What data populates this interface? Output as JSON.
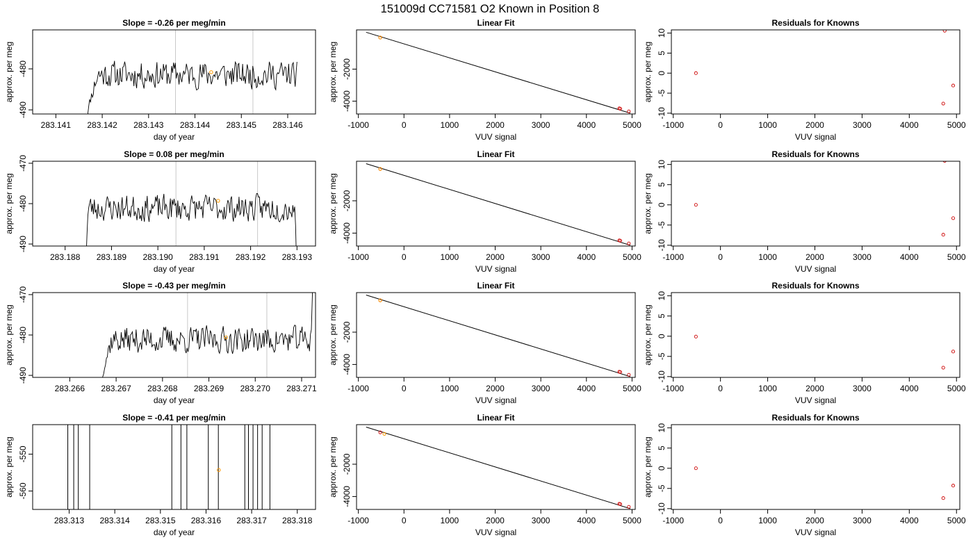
{
  "figure_title": "151009d     CC71581   O2 Known in Position  8",
  "chart_data": [
    {
      "type": "line",
      "title": "Slope =  -0.26  per meg/min",
      "xlabel": "day of year",
      "ylabel": "approx. per meg",
      "x_ticks": [
        "283.141",
        "283.142",
        "283.143",
        "283.144",
        "283.145",
        "283.146"
      ],
      "y_ticks": [
        "-490",
        "-480"
      ],
      "xlim": [
        283.1405,
        283.1466
      ],
      "ylim": [
        -491,
        -470.5
      ],
      "vlines": [
        283.14358,
        283.14525
      ],
      "trace_start": 283.14163,
      "trace_end": 283.1462,
      "plateau_start": 283.1419,
      "plateau_end": 283.14625,
      "level": -481.4,
      "noise": 1.9,
      "seed": 11,
      "point": {
        "x": 283.14435,
        "y": -480.8
      }
    },
    {
      "type": "scatter",
      "title": "Linear Fit",
      "xlabel": "VUV signal",
      "ylabel": "approx. per meg",
      "x_ticks": [
        "-1000",
        "0",
        "1000",
        "2000",
        "3000",
        "4000",
        "5000"
      ],
      "y_ticks": [
        "-2000",
        "-4000"
      ],
      "xlim": [
        -1040,
        5070
      ],
      "ylim": [
        -4800,
        450
      ],
      "line": [
        [
          -830,
          300
        ],
        [
          4960,
          -4750
        ]
      ],
      "points": [
        [
          -520,
          -30
        ],
        [
          4720,
          -4450
        ],
        [
          4740,
          -4470
        ],
        [
          4930,
          -4640
        ]
      ],
      "highlight": [
        [
          -520,
          -30
        ]
      ]
    },
    {
      "type": "scatter",
      "title": "Residuals for Knowns",
      "xlabel": "VUV signal",
      "ylabel": "approx. per meg",
      "x_ticks": [
        "-1000",
        "0",
        "1000",
        "2000",
        "3000",
        "4000",
        "5000"
      ],
      "y_ticks": [
        "-10",
        "-5",
        "0",
        "5",
        "10"
      ],
      "xlim": [
        -1040,
        5070
      ],
      "ylim": [
        -10.2,
        10.8
      ],
      "points": [
        [
          -520,
          0
        ],
        [
          4720,
          -7.6
        ],
        [
          4750,
          10.6
        ],
        [
          4930,
          -3.1
        ]
      ]
    },
    {
      "type": "line",
      "title": "Slope =  0.08  per meg/min",
      "xlabel": "day of year",
      "ylabel": "approx. per meg",
      "x_ticks": [
        "283.188",
        "283.189",
        "283.190",
        "283.191",
        "283.192",
        "283.193"
      ],
      "y_ticks": [
        "-490",
        "-480",
        "-470"
      ],
      "xlim": [
        283.1873,
        283.1934
      ],
      "ylim": [
        -490.5,
        -469.5
      ],
      "vlines": [
        283.19039,
        283.19215
      ],
      "trace_start": 283.18845,
      "trace_end": 283.19305,
      "plateau_start": 283.1885,
      "plateau_end": 283.19295,
      "level": -481.1,
      "noise": 1.9,
      "seed": 23,
      "point": {
        "x": 283.1913,
        "y": -479.3
      }
    },
    {
      "type": "scatter",
      "title": "Linear Fit",
      "xlabel": "VUV signal",
      "ylabel": "approx. per meg",
      "x_ticks": [
        "-1000",
        "0",
        "1000",
        "2000",
        "3000",
        "4000",
        "5000"
      ],
      "y_ticks": [
        "-2000",
        "-4000"
      ],
      "xlim": [
        -1040,
        5070
      ],
      "ylim": [
        -4800,
        450
      ],
      "line": [
        [
          -830,
          300
        ],
        [
          4960,
          -4750
        ]
      ],
      "points": [
        [
          -520,
          -30
        ],
        [
          4720,
          -4450
        ],
        [
          4740,
          -4470
        ],
        [
          4930,
          -4640
        ]
      ],
      "highlight": [
        [
          -520,
          -30
        ]
      ]
    },
    {
      "type": "scatter",
      "title": "Residuals for Knowns",
      "xlabel": "VUV signal",
      "ylabel": "approx. per meg",
      "x_ticks": [
        "-1000",
        "0",
        "1000",
        "2000",
        "3000",
        "4000",
        "5000"
      ],
      "y_ticks": [
        "-10",
        "-5",
        "0",
        "5",
        "10"
      ],
      "xlim": [
        -1040,
        5070
      ],
      "ylim": [
        -10.2,
        10.8
      ],
      "points": [
        [
          -520,
          0
        ],
        [
          4720,
          -7.4
        ],
        [
          4750,
          10.9
        ],
        [
          4930,
          -3.3
        ]
      ]
    },
    {
      "type": "line",
      "title": "Slope =  -0.43  per meg/min",
      "xlabel": "day of year",
      "ylabel": "approx. per meg",
      "x_ticks": [
        "283.266",
        "283.267",
        "283.268",
        "283.269",
        "283.270",
        "283.271"
      ],
      "y_ticks": [
        "-490",
        "-480",
        "-470"
      ],
      "xlim": [
        283.2652,
        283.2713
      ],
      "ylim": [
        -490.5,
        -469.5
      ],
      "vlines": [
        283.26854,
        283.27025
      ],
      "trace_start": 283.26665,
      "trace_end": 283.27125,
      "plateau_start": 283.2669,
      "plateau_end": 283.2712,
      "level": -481.2,
      "noise": 1.9,
      "seed": 37,
      "point": {
        "x": 283.26937,
        "y": -480.6
      }
    },
    {
      "type": "scatter",
      "title": "Linear Fit",
      "xlabel": "VUV signal",
      "ylabel": "approx. per meg",
      "x_ticks": [
        "-1000",
        "0",
        "1000",
        "2000",
        "3000",
        "4000",
        "5000"
      ],
      "y_ticks": [
        "-2000",
        "-4000"
      ],
      "xlim": [
        -1040,
        5070
      ],
      "ylim": [
        -4800,
        450
      ],
      "line": [
        [
          -830,
          300
        ],
        [
          4960,
          -4750
        ]
      ],
      "points": [
        [
          -520,
          -30
        ],
        [
          4720,
          -4450
        ],
        [
          4740,
          -4470
        ],
        [
          4930,
          -4640
        ]
      ],
      "highlight": [
        [
          -520,
          -30
        ]
      ]
    },
    {
      "type": "scatter",
      "title": "Residuals for Knowns",
      "xlabel": "VUV signal",
      "ylabel": "approx. per meg",
      "x_ticks": [
        "-1000",
        "0",
        "1000",
        "2000",
        "3000",
        "4000",
        "5000"
      ],
      "y_ticks": [
        "-10",
        "-5",
        "0",
        "5",
        "10"
      ],
      "xlim": [
        -1040,
        5070
      ],
      "ylim": [
        -10.2,
        10.8
      ],
      "points": [
        [
          -520,
          -0.1
        ],
        [
          4720,
          -7.8
        ],
        [
          4930,
          -3.8
        ]
      ]
    },
    {
      "type": "line",
      "title": "Slope =  -0.41  per meg/min",
      "xlabel": "day of year",
      "ylabel": "approx. per meg",
      "x_ticks": [
        "283.313",
        "283.314",
        "283.315",
        "283.316",
        "283.317",
        "283.318"
      ],
      "y_ticks": [
        "-560",
        "-550"
      ],
      "xlim": [
        283.3122,
        283.3184
      ],
      "ylim": [
        -565,
        -542
      ],
      "spikes": [
        283.31297,
        283.3131,
        283.3132,
        283.31345,
        283.31525,
        283.31545,
        283.31558,
        283.31605,
        283.31627,
        283.31685,
        283.31693,
        283.31703,
        283.31713,
        283.31723,
        283.3174
      ],
      "point": {
        "x": 283.31628,
        "y": -554.3
      }
    },
    {
      "type": "scatter",
      "title": "Linear Fit",
      "xlabel": "VUV signal",
      "ylabel": "approx. per meg",
      "x_ticks": [
        "-1000",
        "0",
        "1000",
        "2000",
        "3000",
        "4000",
        "5000"
      ],
      "y_ticks": [
        "-2000",
        "-4000"
      ],
      "xlim": [
        -1040,
        5070
      ],
      "ylim": [
        -4800,
        450
      ],
      "line": [
        [
          -830,
          300
        ],
        [
          4960,
          -4750
        ]
      ],
      "points": [
        [
          -520,
          -30
        ],
        [
          4720,
          -4450
        ],
        [
          4740,
          -4470
        ],
        [
          4930,
          -4640
        ]
      ],
      "highlight": [
        [
          -430,
          -120
        ]
      ]
    },
    {
      "type": "scatter",
      "title": "Residuals for Knowns",
      "xlabel": "VUV signal",
      "ylabel": "approx. per meg",
      "x_ticks": [
        "-1000",
        "0",
        "1000",
        "2000",
        "3000",
        "4000",
        "5000"
      ],
      "y_ticks": [
        "-10",
        "-5",
        "0",
        "5",
        "10"
      ],
      "xlim": [
        -1040,
        5070
      ],
      "ylim": [
        -10.2,
        10.8
      ],
      "points": [
        [
          -520,
          0
        ],
        [
          4720,
          -7.4
        ],
        [
          4930,
          -4.3
        ]
      ]
    }
  ]
}
